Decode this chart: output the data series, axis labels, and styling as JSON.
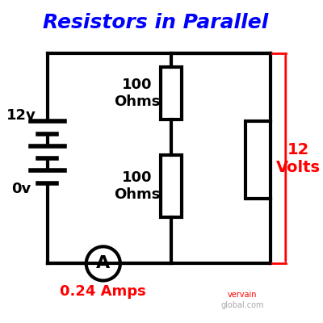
{
  "title": "Resistors in Parallel",
  "title_color": "blue",
  "title_fontsize": 18,
  "bg_color": "#ffffff",
  "line_color": "black",
  "line_width": 3,
  "resistor1_label": "100\nOhms",
  "resistor2_label": "100\nOhms",
  "voltage_label": "12v",
  "zero_label": "0v",
  "volts_label": "12\nVolts",
  "amps_label": "0.24 Amps",
  "ammeter_label": "A",
  "red_color": "red",
  "annotation_fontsize": 13,
  "small_fontsize": 11,
  "logo_text1": "vervain",
  "logo_text2": "global.com"
}
